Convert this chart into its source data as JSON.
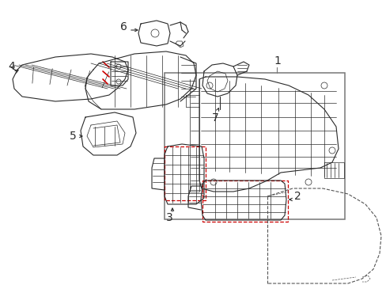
{
  "bg_color": "#ffffff",
  "line_color": "#2a2a2a",
  "red_color": "#cc0000",
  "gray_color": "#777777",
  "dash_color": "#555555",
  "fig_width": 4.89,
  "fig_height": 3.6,
  "dpi": 100
}
